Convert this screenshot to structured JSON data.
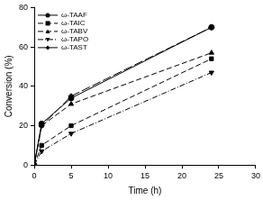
{
  "chart_data": {
    "type": "line",
    "x_label": "Time (h)",
    "y_label": "Conversion (%)",
    "x": [
      0,
      1,
      5,
      24
    ],
    "series": [
      {
        "name": "ω-TAAF",
        "color": "#000000",
        "marker": "circle",
        "line_style": "solid",
        "values": [
          0,
          21,
          34,
          70
        ]
      },
      {
        "name": "ω-TAIC",
        "color": "#000000",
        "marker": "square",
        "line_style": "dashed",
        "values": [
          0,
          10,
          20,
          54
        ]
      },
      {
        "name": "ω-TABV",
        "color": "#000000",
        "marker": "triangle",
        "line_style": "dashed",
        "values": [
          0,
          20,
          31,
          57
        ]
      },
      {
        "name": "ω-TAPO",
        "color": "#000000",
        "marker": "triangle_down",
        "line_style": "dashdot",
        "values": [
          0,
          7,
          16,
          47
        ]
      },
      {
        "name": "ω-TAST",
        "color": "#000000",
        "marker": "diamond",
        "line_style": "longdash",
        "values": [
          0,
          20,
          35,
          70
        ]
      }
    ],
    "xlim": [
      0,
      30
    ],
    "xticks": [
      0,
      5,
      10,
      15,
      20,
      25,
      30
    ],
    "ylim": [
      0,
      80
    ],
    "yticks": [
      0,
      20,
      40,
      60,
      80
    ],
    "grid": false,
    "legend": "top left"
  }
}
